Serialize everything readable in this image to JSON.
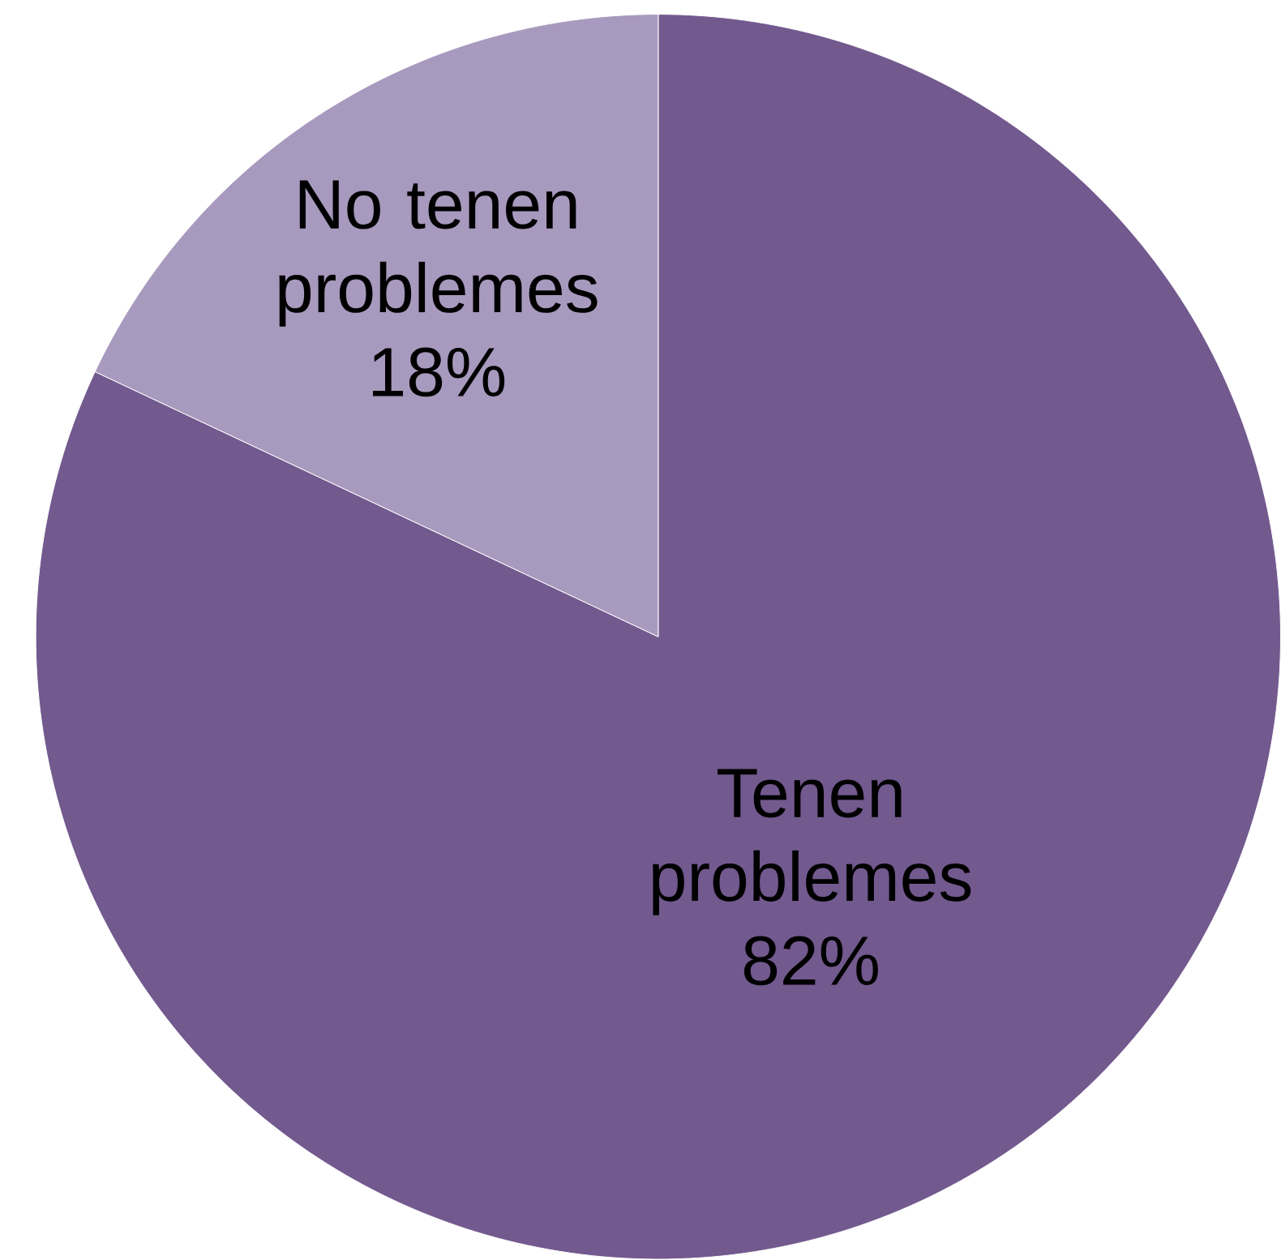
{
  "chart_data": {
    "type": "pie",
    "categories": [
      "Tenen problemes",
      "No tenen problemes"
    ],
    "values": [
      82,
      18
    ],
    "colors": [
      "#72598e",
      "#a899be"
    ],
    "value_labels": [
      "82%",
      "18%"
    ]
  }
}
